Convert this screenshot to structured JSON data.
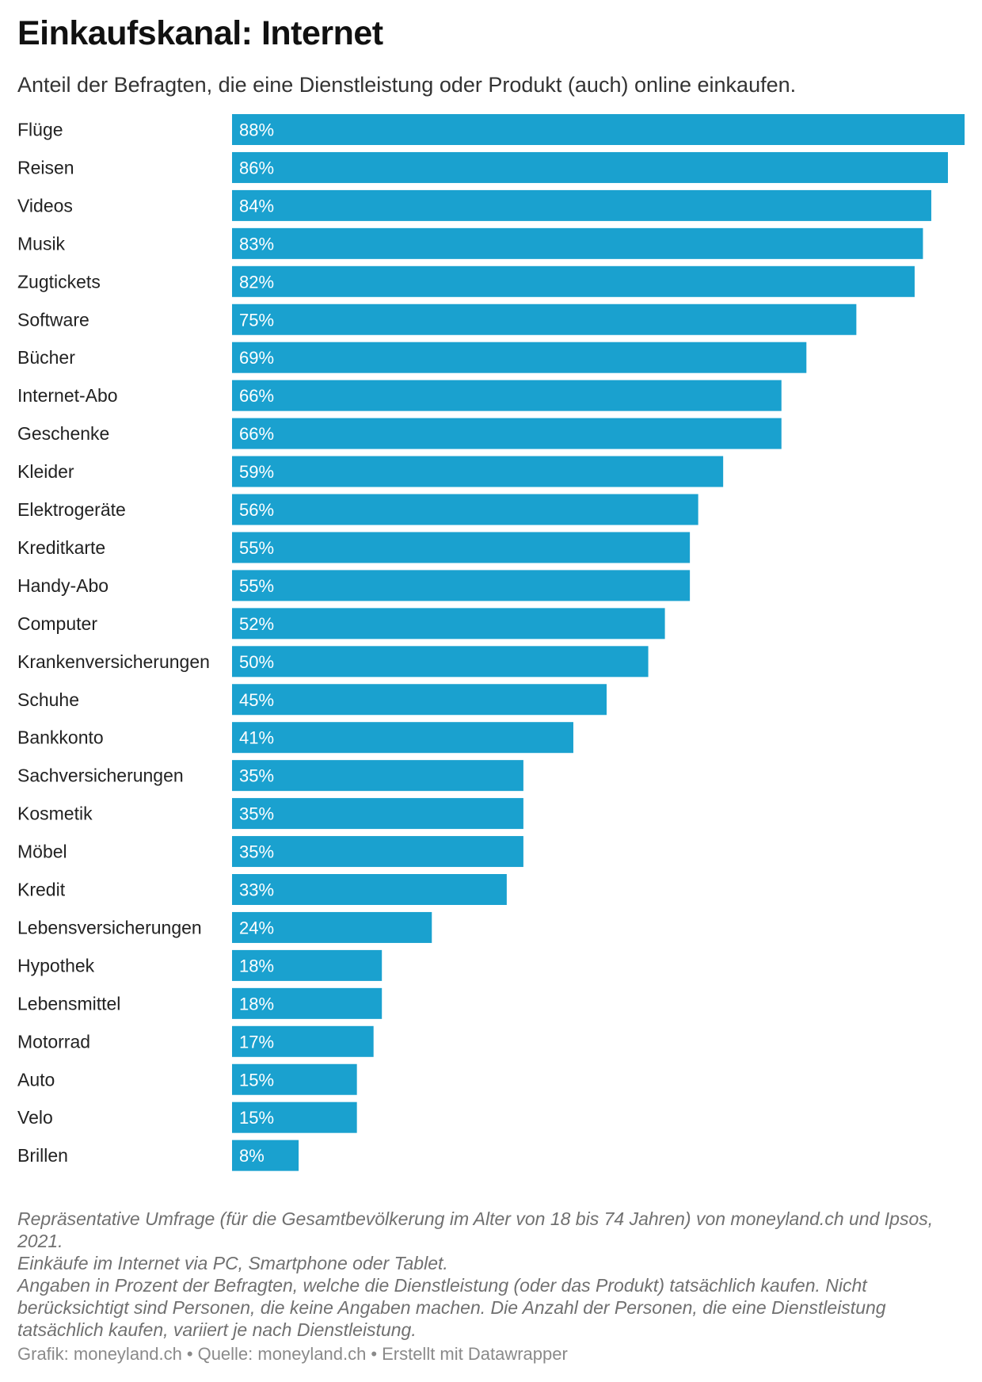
{
  "header": {
    "title": "Einkaufskanal: Internet",
    "subtitle": "Anteil der Befragten, die eine Dienstleistung oder Produkt (auch) online einkaufen."
  },
  "chart_data": {
    "type": "bar",
    "orientation": "horizontal",
    "value_suffix": "%",
    "bar_color": "#1aa1cf",
    "label_color": "#ffffff",
    "xlim": [
      0,
      88
    ],
    "categories": [
      "Flüge",
      "Reisen",
      "Videos",
      "Musik",
      "Zugtickets",
      "Software",
      "Bücher",
      "Internet-Abo",
      "Geschenke",
      "Kleider",
      "Elektrogeräte",
      "Kreditkarte",
      "Handy-Abo",
      "Computer",
      "Krankenversicherungen",
      "Schuhe",
      "Bankkonto",
      "Sachversicherungen",
      "Kosmetik",
      "Möbel",
      "Kredit",
      "Lebensversicherungen",
      "Hypothek",
      "Lebensmittel",
      "Motorrad",
      "Auto",
      "Velo",
      "Brillen"
    ],
    "values": [
      88,
      86,
      84,
      83,
      82,
      75,
      69,
      66,
      66,
      59,
      56,
      55,
      55,
      52,
      50,
      45,
      41,
      35,
      35,
      35,
      33,
      24,
      18,
      18,
      17,
      15,
      15,
      8
    ]
  },
  "notes": [
    "Repräsentative Umfrage (für die Gesamtbevölkerung im Alter von 18 bis 74 Jahren) von moneyland.ch und Ipsos, 2021.",
    "Einkäufe im Internet via PC, Smartphone oder Tablet.",
    "Angaben in Prozent der Befragten, welche die Dienstleistung (oder das Produkt) tatsächlich kaufen. Nicht berücksichtigt sind Personen, die keine Angaben machen. Die Anzahl der Personen, die eine Dienstleistung tatsächlich kaufen, variiert je nach Dienstleistung."
  ],
  "footer": {
    "grafik": "Grafik: moneyland.ch",
    "quelle": "Quelle: moneyland.ch",
    "tool": "Erstellt mit Datawrapper",
    "separator": "•"
  }
}
